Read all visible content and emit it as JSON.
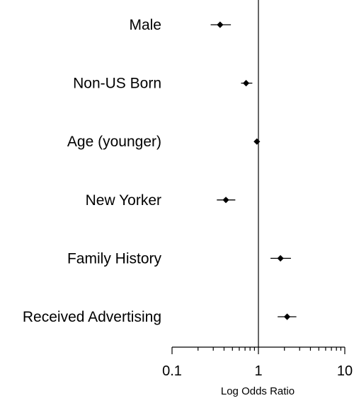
{
  "chart_data": {
    "type": "scatter",
    "subtype": "forest-plot",
    "title": "",
    "xlabel": "Log Odds Ratio",
    "ylabel": "",
    "x_scale": "log",
    "xlim": [
      0.1,
      10
    ],
    "x_ticks": [
      {
        "value": 0.1,
        "label": "0.1"
      },
      {
        "value": 1,
        "label": "1"
      },
      {
        "value": 10,
        "label": "10"
      }
    ],
    "reference_line": 1,
    "grid": false,
    "legend": "none",
    "categories": [
      "Male",
      "Non-US Born",
      "Age (younger)",
      "New Yorker",
      "Family History",
      "Received Advertising"
    ],
    "series": [
      {
        "estimates": [
          0.36,
          0.72,
          0.96,
          0.42,
          1.8,
          2.15
        ],
        "ci_lower": [
          0.28,
          0.63,
          0.94,
          0.33,
          1.38,
          1.67
        ],
        "ci_upper": [
          0.48,
          0.85,
          0.98,
          0.54,
          2.38,
          2.75
        ]
      }
    ],
    "colors": {
      "marker": "#000000",
      "line": "#000000",
      "background": "#ffffff"
    }
  }
}
